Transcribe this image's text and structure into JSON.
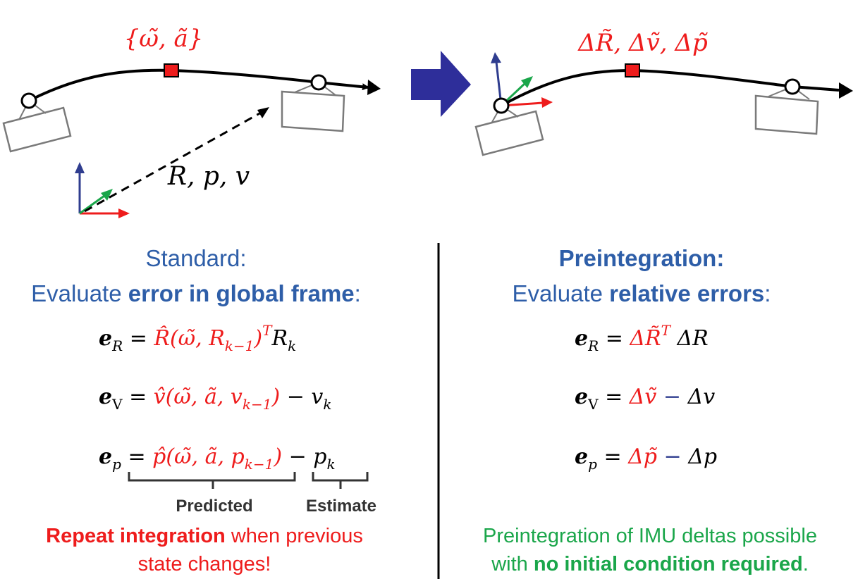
{
  "top": {
    "left_label": "{ω̃, ã}",
    "left_frame_label": "R, p, v",
    "right_label": "ΔR̃, Δṽ, Δp̃"
  },
  "standard": {
    "title": "Standard:",
    "subtitle_prefix": "Evaluate ",
    "subtitle_bold": "error in global frame",
    "subtitle_suffix": ":",
    "eq_R": {
      "lhs": "e",
      "sub": "R",
      "eq": " = ",
      "red": "R̂(ω̃, R",
      "red_sub": "k−1",
      "red_tail": ")",
      "sup": "T",
      "black": "R",
      "black_sub": "k"
    },
    "eq_v": {
      "lhs": "e",
      "sub": "V",
      "eq": " = ",
      "red": "v̂(ω̃, ã, v",
      "red_sub": "k−1",
      "red_tail": ")",
      "minus": " − ",
      "black": "v",
      "black_sub": "k"
    },
    "eq_p": {
      "lhs": "e",
      "sub": "p",
      "eq": " = ",
      "red": "p̂(ω̃, ã, p",
      "red_sub": "k−1",
      "red_tail": ")",
      "minus": " − ",
      "black": "p",
      "black_sub": "k"
    },
    "brace_predicted": "Predicted",
    "brace_estimate": "Estimate",
    "note_bold": "Repeat integration",
    "note_line1_rest": " when previous",
    "note_line2": "state changes!"
  },
  "preintegration": {
    "title": "Preintegration:",
    "subtitle_prefix": "Evaluate ",
    "subtitle_bold": "relative errors",
    "subtitle_suffix": ":",
    "eq_R": {
      "lhs": "e",
      "sub": "R",
      "eq": " = ",
      "red": "ΔR̃",
      "sup": "T",
      "black": " ΔR"
    },
    "eq_v": {
      "lhs": "e",
      "sub": "V",
      "eq": " = ",
      "red": "Δṽ",
      "minus": " − ",
      "black": "Δv"
    },
    "eq_p": {
      "lhs": "e",
      "sub": "p",
      "eq": " = ",
      "red": "Δp̃",
      "minus": " − ",
      "black": "Δp"
    },
    "note_line1": "Preintegration of IMU deltas possible",
    "note_line2_prefix": "with ",
    "note_line2_bold": "no initial condition required",
    "note_line2_suffix": "."
  },
  "colors": {
    "blue": "#2e5ea8",
    "red": "#ee1c1c",
    "green": "#1aa64a",
    "navy": "#2f3d8f"
  }
}
